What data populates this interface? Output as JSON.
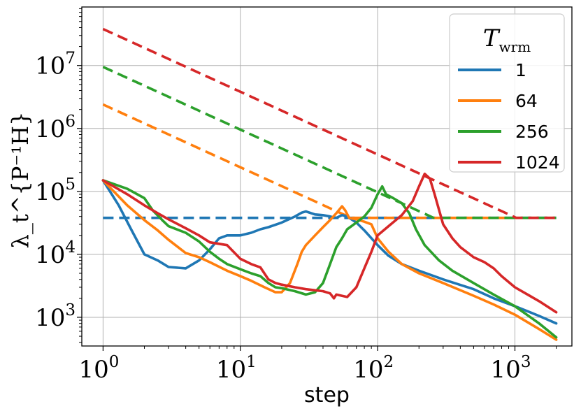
{
  "chart_data": {
    "type": "line",
    "xlabel": "step",
    "ylabel": "λ_t^{P⁻¹H}",
    "x_scale": "log",
    "y_scale": "log",
    "xlim": [
      0.7,
      2600
    ],
    "ylim": [
      350,
      85000000.0
    ],
    "x_ticks": [
      {
        "value": 1,
        "base": "10",
        "exp": "0"
      },
      {
        "value": 10,
        "base": "10",
        "exp": "1"
      },
      {
        "value": 100,
        "base": "10",
        "exp": "2"
      },
      {
        "value": 1000,
        "base": "10",
        "exp": "3"
      }
    ],
    "y_ticks": [
      {
        "value": 1000,
        "base": "10",
        "exp": "3"
      },
      {
        "value": 10000,
        "base": "10",
        "exp": "4"
      },
      {
        "value": 100000,
        "base": "10",
        "exp": "5"
      },
      {
        "value": 1000000,
        "base": "10",
        "exp": "6"
      },
      {
        "value": 10000000,
        "base": "10",
        "exp": "7"
      }
    ],
    "grid": true,
    "legend": {
      "title_main": "T",
      "title_sub": "wrm",
      "placement": "top-right"
    },
    "series": [
      {
        "name": "1",
        "color": "#1f77b4",
        "solid": [
          [
            1,
            150000
          ],
          [
            1.3,
            60000
          ],
          [
            1.6,
            25000
          ],
          [
            2,
            10000
          ],
          [
            2.5,
            8000
          ],
          [
            3,
            6300
          ],
          [
            4,
            6000
          ],
          [
            5,
            8000
          ],
          [
            6,
            12000
          ],
          [
            7,
            18000
          ],
          [
            8,
            20000
          ],
          [
            10,
            20000
          ],
          [
            12,
            22000
          ],
          [
            14,
            25000
          ],
          [
            16,
            27000
          ],
          [
            20,
            32000
          ],
          [
            25,
            40000
          ],
          [
            28,
            46000
          ],
          [
            30,
            48000
          ],
          [
            35,
            43000
          ],
          [
            40,
            42000
          ],
          [
            45,
            40000
          ],
          [
            50,
            38000
          ],
          [
            55,
            42000
          ],
          [
            60,
            40000
          ],
          [
            70,
            32000
          ],
          [
            80,
            24000
          ],
          [
            100,
            14000
          ],
          [
            120,
            9500
          ],
          [
            150,
            7000
          ],
          [
            200,
            5500
          ],
          [
            300,
            4000
          ],
          [
            500,
            2800
          ],
          [
            700,
            2000
          ],
          [
            1000,
            1500
          ],
          [
            1500,
            1050
          ],
          [
            2000,
            800
          ]
        ],
        "dashed": [
          [
            1,
            38000
          ],
          [
            2000,
            38000
          ]
        ]
      },
      {
        "name": "64",
        "color": "#ff7f0e",
        "solid": [
          [
            1,
            150000
          ],
          [
            1.5,
            60000
          ],
          [
            2,
            35000
          ],
          [
            2.5,
            24000
          ],
          [
            3,
            17000
          ],
          [
            4,
            10500
          ],
          [
            5,
            9000
          ],
          [
            6,
            7500
          ],
          [
            8,
            5500
          ],
          [
            10,
            4500
          ],
          [
            12,
            3800
          ],
          [
            15,
            3000
          ],
          [
            18,
            2500
          ],
          [
            20,
            2500
          ],
          [
            23,
            3500
          ],
          [
            26,
            7000
          ],
          [
            28,
            11000
          ],
          [
            30,
            14000
          ],
          [
            35,
            20000
          ],
          [
            40,
            27000
          ],
          [
            45,
            35000
          ],
          [
            50,
            45000
          ],
          [
            55,
            58000
          ],
          [
            58,
            50000
          ],
          [
            62,
            38000
          ],
          [
            70,
            36000
          ],
          [
            80,
            33000
          ],
          [
            90,
            30000
          ],
          [
            100,
            18000
          ],
          [
            120,
            11000
          ],
          [
            150,
            7000
          ],
          [
            200,
            5000
          ],
          [
            300,
            3500
          ],
          [
            500,
            2200
          ],
          [
            700,
            1600
          ],
          [
            1000,
            1100
          ],
          [
            1500,
            650
          ],
          [
            2000,
            440
          ]
        ],
        "dashed": [
          [
            1,
            2400000
          ],
          [
            64,
            38000
          ],
          [
            2000,
            38000
          ]
        ]
      },
      {
        "name": "256",
        "color": "#2ca02c",
        "solid": [
          [
            1,
            150000
          ],
          [
            1.5,
            110000
          ],
          [
            2,
            78000
          ],
          [
            2.3,
            50000
          ],
          [
            2.7,
            35000
          ],
          [
            3,
            28000
          ],
          [
            4,
            22000
          ],
          [
            5,
            16000
          ],
          [
            6,
            11000
          ],
          [
            7,
            8500
          ],
          [
            8,
            7000
          ],
          [
            10,
            5800
          ],
          [
            12,
            5000
          ],
          [
            14,
            4500
          ],
          [
            16,
            3500
          ],
          [
            18,
            3000
          ],
          [
            20,
            2900
          ],
          [
            25,
            2600
          ],
          [
            30,
            2300
          ],
          [
            35,
            2500
          ],
          [
            40,
            3500
          ],
          [
            45,
            7000
          ],
          [
            50,
            13000
          ],
          [
            55,
            18000
          ],
          [
            60,
            25000
          ],
          [
            70,
            32000
          ],
          [
            80,
            40000
          ],
          [
            90,
            55000
          ],
          [
            100,
            90000
          ],
          [
            108,
            120000
          ],
          [
            115,
            90000
          ],
          [
            130,
            78000
          ],
          [
            150,
            65000
          ],
          [
            170,
            45000
          ],
          [
            190,
            25000
          ],
          [
            220,
            14000
          ],
          [
            280,
            8000
          ],
          [
            350,
            5500
          ],
          [
            500,
            3500
          ],
          [
            700,
            2300
          ],
          [
            1000,
            1500
          ],
          [
            1500,
            800
          ],
          [
            2000,
            480
          ]
        ],
        "dashed": [
          [
            1,
            9500000
          ],
          [
            256,
            38000
          ],
          [
            2000,
            38000
          ]
        ]
      },
      {
        "name": "1024",
        "color": "#d62728",
        "solid": [
          [
            1,
            150000
          ],
          [
            1.5,
            90000
          ],
          [
            2,
            60000
          ],
          [
            2.5,
            45000
          ],
          [
            3,
            36000
          ],
          [
            4,
            26000
          ],
          [
            5,
            20000
          ],
          [
            6,
            15500
          ],
          [
            8,
            14000
          ],
          [
            10,
            8500
          ],
          [
            12,
            7000
          ],
          [
            14,
            6200
          ],
          [
            16,
            4000
          ],
          [
            18,
            3500
          ],
          [
            20,
            3300
          ],
          [
            25,
            3000
          ],
          [
            30,
            2800
          ],
          [
            40,
            2600
          ],
          [
            45,
            2400
          ],
          [
            48,
            2000
          ],
          [
            50,
            2300
          ],
          [
            60,
            2100
          ],
          [
            70,
            3000
          ],
          [
            80,
            6000
          ],
          [
            90,
            11000
          ],
          [
            100,
            20000
          ],
          [
            120,
            28000
          ],
          [
            150,
            42000
          ],
          [
            180,
            70000
          ],
          [
            200,
            120000
          ],
          [
            220,
            190000
          ],
          [
            240,
            160000
          ],
          [
            260,
            90000
          ],
          [
            300,
            30000
          ],
          [
            350,
            18000
          ],
          [
            400,
            13000
          ],
          [
            500,
            9000
          ],
          [
            600,
            7500
          ],
          [
            700,
            6000
          ],
          [
            800,
            4500
          ],
          [
            1000,
            3000
          ],
          [
            1500,
            1800
          ],
          [
            2000,
            1200
          ]
        ],
        "dashed": [
          [
            1,
            38000000
          ],
          [
            1024,
            38000
          ],
          [
            2000,
            38000
          ]
        ]
      }
    ]
  }
}
